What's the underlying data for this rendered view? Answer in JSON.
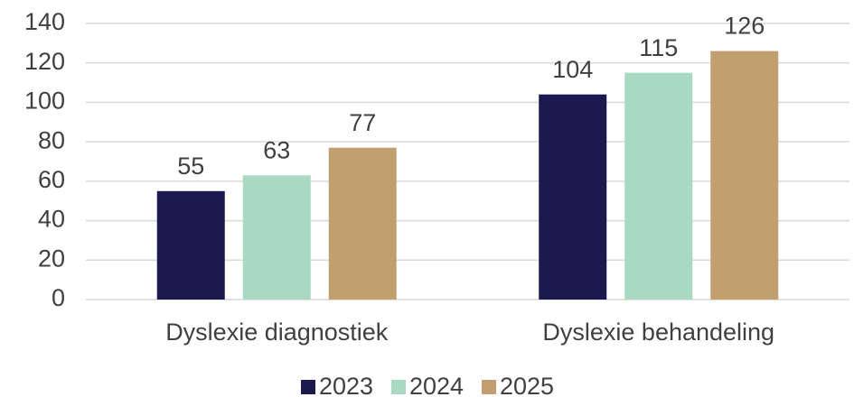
{
  "chart_data": {
    "type": "bar",
    "categories": [
      "Dyslexie diagnostiek",
      "Dyslexie behandeling"
    ],
    "series": [
      {
        "name": "2023",
        "color": "#1b1a4f",
        "values": [
          55,
          104
        ]
      },
      {
        "name": "2024",
        "color": "#a9d9c2",
        "values": [
          63,
          115
        ]
      },
      {
        "name": "2025",
        "color": "#c29f6e",
        "values": [
          77,
          126
        ]
      }
    ],
    "ylim": [
      0,
      140
    ],
    "yticks": [
      0,
      20,
      40,
      60,
      80,
      100,
      120,
      140
    ],
    "grid": true,
    "legend": "bottom"
  }
}
